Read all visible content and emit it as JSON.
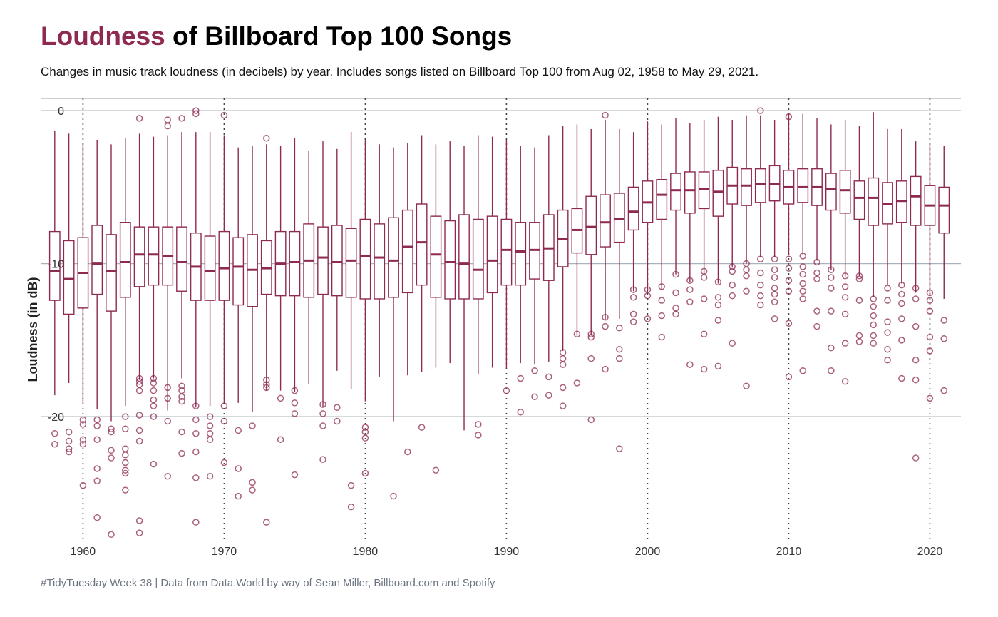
{
  "header": {
    "title_highlight": "Loudness",
    "title_rest": " of Billboard Top 100 Songs",
    "subtitle": "Changes in music track loudness (in decibels) by year. Includes songs listed on Billboard Top 100 from Aug 02, 1958 to May 29, 2021."
  },
  "caption": "#TidyTuesday Week 38 | Data from Data.World by way of Sean Miller, Billboard.com and Spotify",
  "colors": {
    "accent": "#8e2a52",
    "grid": "#aab3bd",
    "decade_line": "#444444"
  },
  "chart_data": {
    "type": "boxplot",
    "ylabel": "Loudness (in dB)",
    "xlim": [
      1957.0,
      2022.2
    ],
    "ylim": [
      -28.2,
      0.8
    ],
    "x_ticks": [
      1960,
      1970,
      1980,
      1990,
      2000,
      2010,
      2020
    ],
    "x_tick_labels": [
      "1960",
      "1970",
      "1980",
      "1990",
      "2000",
      "2010",
      "2020"
    ],
    "y_ticks": [
      0,
      -10,
      -20
    ],
    "y_tick_labels": [
      "0",
      "-10",
      "-20"
    ],
    "grid": "horizontal major gridlines; dotted vertical lines at decades",
    "years": [
      1958,
      1959,
      1960,
      1961,
      1962,
      1963,
      1964,
      1965,
      1966,
      1967,
      1968,
      1969,
      1970,
      1971,
      1972,
      1973,
      1974,
      1975,
      1976,
      1977,
      1978,
      1979,
      1980,
      1981,
      1982,
      1983,
      1984,
      1985,
      1986,
      1987,
      1988,
      1989,
      1990,
      1991,
      1992,
      1993,
      1994,
      1995,
      1996,
      1997,
      1998,
      1999,
      2000,
      2001,
      2002,
      2003,
      2004,
      2005,
      2006,
      2007,
      2008,
      2009,
      2010,
      2011,
      2012,
      2013,
      2014,
      2015,
      2016,
      2017,
      2018,
      2019,
      2020,
      2021
    ],
    "whisker_low": [
      -18.6,
      -17.8,
      -19.2,
      -19.5,
      -20.3,
      -19.3,
      -17.6,
      -17.5,
      -19.6,
      -17.5,
      -19.4,
      -19.3,
      -19.2,
      -19.1,
      -19.7,
      -18.3,
      -18.3,
      -18.4,
      -17.9,
      -19.4,
      -17.0,
      -18.2,
      -19.0,
      -17.4,
      -20.3,
      -17.3,
      -17.1,
      -16.8,
      -16.5,
      -20.9,
      -17.2,
      -16.8,
      -16.9,
      -16.5,
      -16.6,
      -16.4,
      -15.7,
      -14.7,
      -14.7,
      -13.7,
      -13.6,
      -11.8,
      -11.9,
      -11.7,
      -10.7,
      -11.2,
      -10.7,
      -11.3,
      -10.2,
      -10.0,
      -9.6,
      -9.6,
      -9.4,
      -9.4,
      -9.8,
      -10.4,
      -10.9,
      -10.8,
      -12.2,
      -11.4,
      -11.3,
      -11.9,
      -12.0,
      -12.3
    ],
    "q1": [
      -12.4,
      -13.3,
      -12.9,
      -12.0,
      -13.1,
      -12.2,
      -11.5,
      -11.4,
      -11.4,
      -11.8,
      -12.4,
      -12.4,
      -12.4,
      -12.7,
      -12.8,
      -12.0,
      -12.1,
      -12.1,
      -12.2,
      -12.0,
      -12.1,
      -12.2,
      -12.3,
      -12.3,
      -12.2,
      -11.9,
      -11.4,
      -12.2,
      -12.3,
      -12.3,
      -12.3,
      -11.9,
      -11.4,
      -11.4,
      -11.0,
      -11.1,
      -10.2,
      -9.3,
      -9.4,
      -8.9,
      -8.6,
      -7.8,
      -7.3,
      -7.1,
      -6.5,
      -6.7,
      -6.4,
      -6.9,
      -6.1,
      -6.2,
      -6.0,
      -5.9,
      -6.1,
      -6.0,
      -6.2,
      -6.5,
      -6.7,
      -7.1,
      -7.5,
      -7.4,
      -7.3,
      -7.5,
      -7.5,
      -8.0
    ],
    "median": [
      -10.5,
      -11.0,
      -10.6,
      -10.0,
      -10.5,
      -9.9,
      -9.4,
      -9.4,
      -9.5,
      -9.9,
      -10.2,
      -10.5,
      -10.3,
      -10.2,
      -10.4,
      -10.3,
      -10.0,
      -9.9,
      -9.8,
      -9.6,
      -9.9,
      -9.8,
      -9.5,
      -9.6,
      -9.8,
      -8.9,
      -8.6,
      -9.4,
      -9.9,
      -10.0,
      -10.4,
      -9.8,
      -9.1,
      -9.2,
      -9.1,
      -9.0,
      -8.4,
      -7.8,
      -7.6,
      -7.3,
      -7.1,
      -6.6,
      -6.0,
      -5.5,
      -5.2,
      -5.2,
      -5.1,
      -5.3,
      -4.9,
      -4.9,
      -4.8,
      -4.8,
      -5.0,
      -5.0,
      -5.0,
      -5.1,
      -5.2,
      -5.7,
      -5.7,
      -6.1,
      -5.9,
      -5.6,
      -6.2,
      -6.2
    ],
    "q3": [
      -7.9,
      -8.5,
      -8.3,
      -7.5,
      -8.1,
      -7.3,
      -7.6,
      -7.6,
      -7.6,
      -7.6,
      -8.0,
      -8.2,
      -7.9,
      -8.3,
      -8.1,
      -8.5,
      -7.9,
      -7.9,
      -7.4,
      -7.6,
      -7.5,
      -7.7,
      -7.1,
      -7.4,
      -7.0,
      -6.5,
      -6.1,
      -6.9,
      -7.2,
      -6.8,
      -7.1,
      -6.9,
      -7.1,
      -7.3,
      -7.3,
      -6.8,
      -6.5,
      -6.4,
      -5.6,
      -5.5,
      -5.4,
      -5.0,
      -4.6,
      -4.5,
      -4.1,
      -4.0,
      -4.0,
      -3.9,
      -3.7,
      -3.8,
      -3.8,
      -3.6,
      -3.9,
      -3.8,
      -3.8,
      -4.1,
      -3.9,
      -4.6,
      -4.4,
      -4.7,
      -4.6,
      -4.3,
      -4.9,
      -5.0
    ],
    "whisker_high": [
      -1.3,
      -1.5,
      -2.1,
      -1.9,
      -2.2,
      -1.8,
      -1.5,
      -1.7,
      -1.6,
      -1.4,
      -1.4,
      -1.4,
      -1.6,
      -2.4,
      -2.3,
      -2.2,
      -2.3,
      -1.8,
      -2.6,
      -2.0,
      -2.5,
      -1.4,
      -1.9,
      -2.2,
      -2.4,
      -2.1,
      -1.6,
      -2.2,
      -2.0,
      -2.3,
      -1.6,
      -1.7,
      -1.9,
      -2.3,
      -2.4,
      -1.6,
      -1.0,
      -0.9,
      -1.2,
      -0.6,
      -1.2,
      -1.4,
      -0.7,
      -0.9,
      -0.5,
      -0.8,
      -0.6,
      -0.4,
      -0.6,
      -0.3,
      -0.3,
      -0.6,
      -0.2,
      -0.2,
      -0.5,
      -0.9,
      -0.6,
      -1.0,
      -0.1,
      -1.2,
      -1.2,
      -2.0,
      -2.1,
      -2.3
    ],
    "outliers_x": [
      1958,
      1958,
      1959,
      1959,
      1959,
      1959,
      1960,
      1960,
      1960,
      1960,
      1960,
      1961,
      1961,
      1961,
      1961,
      1961,
      1961,
      1962,
      1962,
      1962,
      1962,
      1962,
      1963,
      1963,
      1963,
      1963,
      1963,
      1963,
      1963,
      1963,
      1964,
      1964,
      1964,
      1964,
      1964,
      1964,
      1964,
      1964,
      1964,
      1964,
      1965,
      1965,
      1965,
      1965,
      1965,
      1965,
      1965,
      1966,
      1966,
      1966,
      1966,
      1966,
      1966,
      1967,
      1967,
      1967,
      1967,
      1967,
      1967,
      1967,
      1968,
      1968,
      1968,
      1968,
      1968,
      1968,
      1968,
      1968,
      1969,
      1969,
      1969,
      1969,
      1969,
      1970,
      1970,
      1970,
      1970,
      1971,
      1971,
      1971,
      1972,
      1972,
      1972,
      1973,
      1973,
      1973,
      1973,
      1973,
      1974,
      1974,
      1975,
      1975,
      1975,
      1975,
      1977,
      1977,
      1977,
      1977,
      1978,
      1978,
      1979,
      1979,
      1980,
      1980,
      1980,
      1980,
      1982,
      1983,
      1984,
      1985,
      1988,
      1988,
      1990,
      1991,
      1991,
      1992,
      1992,
      1993,
      1993,
      1994,
      1994,
      1994,
      1994,
      1994,
      1995,
      1995,
      1996,
      1996,
      1996,
      1996,
      1997,
      1997,
      1997,
      1997,
      1998,
      1998,
      1998,
      1998,
      1999,
      1999,
      1999,
      1999,
      2000,
      2000,
      2000,
      2001,
      2001,
      2001,
      2001,
      2002,
      2002,
      2002,
      2002,
      2003,
      2003,
      2003,
      2003,
      2004,
      2004,
      2004,
      2004,
      2004,
      2005,
      2005,
      2005,
      2005,
      2005,
      2006,
      2006,
      2006,
      2006,
      2006,
      2007,
      2007,
      2007,
      2007,
      2007,
      2008,
      2008,
      2008,
      2008,
      2008,
      2008,
      2009,
      2009,
      2009,
      2009,
      2009,
      2009,
      2009,
      2010,
      2010,
      2010,
      2010,
      2010,
      2010,
      2010,
      2011,
      2011,
      2011,
      2011,
      2011,
      2011,
      2011,
      2012,
      2012,
      2012,
      2012,
      2012,
      2013,
      2013,
      2013,
      2013,
      2013,
      2013,
      2014,
      2014,
      2014,
      2014,
      2014,
      2014,
      2015,
      2015,
      2015,
      2015,
      2015,
      2016,
      2016,
      2016,
      2016,
      2016,
      2016,
      2017,
      2017,
      2017,
      2017,
      2017,
      2017,
      2018,
      2018,
      2018,
      2018,
      2018,
      2018,
      2019,
      2019,
      2019,
      2019,
      2019,
      2019,
      2020,
      2020,
      2020,
      2020,
      2020,
      2020,
      2021,
      2021,
      2021
    ],
    "outliers_y": [
      -21.1,
      -21.8,
      -21.0,
      -21.6,
      -22.1,
      -22.3,
      -20.2,
      -20.5,
      -21.5,
      -21.8,
      -24.5,
      -20.2,
      -20.6,
      -21.5,
      -23.4,
      -24.2,
      -26.6,
      -20.8,
      -21.0,
      -22.2,
      -22.7,
      -27.7,
      -20.0,
      -20.8,
      -22.1,
      -22.5,
      -23.0,
      -23.5,
      -23.7,
      -24.8,
      -0.5,
      -17.5,
      -17.7,
      -17.9,
      -18.3,
      -19.9,
      -20.9,
      -21.6,
      -26.8,
      -27.6,
      -17.5,
      -17.8,
      -18.3,
      -18.9,
      -19.3,
      -20.0,
      -23.1,
      -0.6,
      -1.0,
      -18.1,
      -18.8,
      -20.3,
      -23.9,
      -0.5,
      -18.0,
      -18.3,
      -18.7,
      -19.0,
      -21.0,
      -22.4,
      -0.0,
      -0.2,
      -19.3,
      -20.2,
      -21.1,
      -22.3,
      -24.0,
      -26.9,
      -20.0,
      -20.6,
      -21.1,
      -21.5,
      -23.9,
      -0.3,
      -19.3,
      -20.3,
      -23.0,
      -20.9,
      -23.4,
      -25.2,
      -20.6,
      -24.3,
      -24.8,
      -1.8,
      -17.6,
      -17.9,
      -18.1,
      -26.9,
      -18.8,
      -21.5,
      -18.3,
      -19.1,
      -19.8,
      -23.8,
      -19.2,
      -19.8,
      -20.6,
      -22.8,
      -19.4,
      -20.3,
      -24.5,
      -25.9,
      -20.7,
      -21.0,
      -21.4,
      -23.7,
      -25.2,
      -22.3,
      -20.7,
      -23.5,
      -20.5,
      -21.2,
      -18.3,
      -17.5,
      -19.7,
      -17.0,
      -18.7,
      -17.4,
      -18.6,
      -15.8,
      -16.2,
      -16.6,
      -18.1,
      -19.3,
      -14.6,
      -17.8,
      -14.6,
      -14.8,
      -16.2,
      -20.2,
      -0.3,
      -13.5,
      -14.1,
      -16.9,
      -14.2,
      -15.6,
      -16.2,
      -22.1,
      -11.7,
      -12.2,
      -13.3,
      -13.8,
      -11.7,
      -12.1,
      -13.6,
      -11.5,
      -12.4,
      -13.4,
      -14.8,
      -10.7,
      -11.9,
      -12.9,
      -13.3,
      -11.1,
      -11.7,
      -12.5,
      -16.6,
      -10.5,
      -10.9,
      -12.3,
      -14.6,
      -16.9,
      -11.2,
      -12.2,
      -12.7,
      -13.7,
      -16.7,
      -10.2,
      -10.5,
      -11.4,
      -12.1,
      -15.2,
      -10.0,
      -10.4,
      -10.8,
      -11.8,
      -18.0,
      -9.7,
      -10.6,
      -11.4,
      -12.1,
      -12.7,
      -0.0,
      -9.7,
      -10.4,
      -10.9,
      -11.6,
      -12.0,
      -12.5,
      -13.6,
      -9.7,
      -10.3,
      -11.1,
      -11.8,
      -13.9,
      -17.4,
      -0.4,
      -9.5,
      -10.2,
      -10.7,
      -11.3,
      -11.8,
      -12.3,
      -17.0,
      -9.9,
      -10.6,
      -11.0,
      -13.1,
      -14.1,
      -10.4,
      -10.9,
      -11.6,
      -13.1,
      -15.5,
      -17.0,
      -10.8,
      -11.5,
      -12.2,
      -13.3,
      -15.2,
      -17.7,
      -10.8,
      -11.0,
      -12.4,
      -14.7,
      -15.1,
      -12.3,
      -12.8,
      -13.4,
      -14.0,
      -14.7,
      -15.2,
      -11.6,
      -12.4,
      -13.8,
      -14.5,
      -15.6,
      -16.3,
      -11.4,
      -12.0,
      -12.6,
      -13.6,
      -15.0,
      -17.5,
      -11.6,
      -12.3,
      -14.1,
      -16.3,
      -17.6,
      -22.7,
      -11.9,
      -12.4,
      -13.1,
      -14.8,
      -15.7,
      -18.8,
      -13.7,
      -14.9,
      -18.3
    ]
  }
}
